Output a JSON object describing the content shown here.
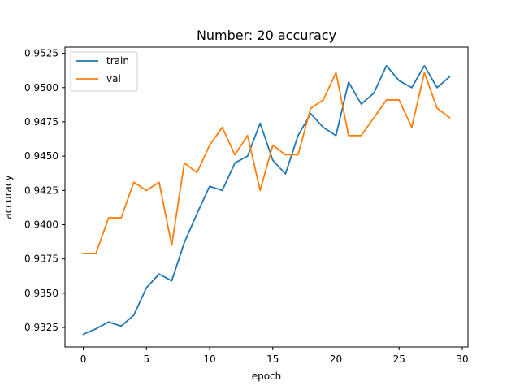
{
  "chart_data": {
    "type": "line",
    "title": "Number: 20 accuracy",
    "xlabel": "epoch",
    "ylabel": "accuracy",
    "xlim": [
      -1.45,
      30.45
    ],
    "ylim": [
      0.93108,
      0.95295
    ],
    "xticks": [
      0,
      5,
      10,
      15,
      20,
      25,
      30
    ],
    "yticks": [
      0.9325,
      0.935,
      0.9375,
      0.94,
      0.9425,
      0.945,
      0.9475,
      0.95,
      0.9525
    ],
    "xtick_labels": [
      "0",
      "5",
      "10",
      "15",
      "20",
      "25",
      "30"
    ],
    "ytick_labels": [
      "0.9325",
      "0.9350",
      "0.9375",
      "0.9400",
      "0.9425",
      "0.9450",
      "0.9475",
      "0.9500",
      "0.9525"
    ],
    "grid": false,
    "legend": {
      "location": "upper-left",
      "entries": [
        "train",
        "val"
      ]
    },
    "x": [
      0,
      1,
      2,
      3,
      4,
      5,
      6,
      7,
      8,
      9,
      10,
      11,
      12,
      13,
      14,
      15,
      16,
      17,
      18,
      19,
      20,
      21,
      22,
      23,
      24,
      25,
      26,
      27,
      28,
      29
    ],
    "series": [
      {
        "name": "train",
        "color": "#1f77b4",
        "values": [
          0.932,
          0.9324,
          0.9329,
          0.9326,
          0.9334,
          0.9354,
          0.9364,
          0.9359,
          0.9387,
          0.9408,
          0.9428,
          0.9425,
          0.9445,
          0.945,
          0.9474,
          0.9447,
          0.9437,
          0.9465,
          0.9481,
          0.9471,
          0.9465,
          0.9504,
          0.9488,
          0.9496,
          0.9516,
          0.9505,
          0.95,
          0.9516,
          0.95,
          0.9508
        ]
      },
      {
        "name": "val",
        "color": "#ff7f0e",
        "values": [
          0.9379,
          0.9379,
          0.9405,
          0.9405,
          0.9431,
          0.9425,
          0.9431,
          0.9385,
          0.9445,
          0.9438,
          0.9458,
          0.9471,
          0.9451,
          0.9465,
          0.9425,
          0.9458,
          0.9451,
          0.9451,
          0.9485,
          0.9491,
          0.9511,
          0.9465,
          0.9465,
          0.9478,
          0.9491,
          0.9491,
          0.9471,
          0.9511,
          0.9485,
          0.9478
        ]
      }
    ]
  }
}
